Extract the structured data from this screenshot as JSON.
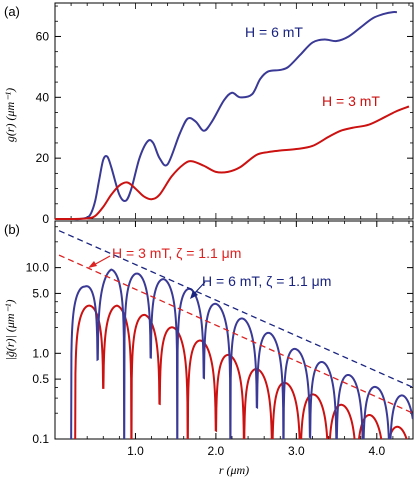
{
  "colors": {
    "blue": "#3a3a96",
    "red": "#cc1111",
    "dark_blue": "#1a2480",
    "bright_red": "#dd2222"
  },
  "chart_data": [
    {
      "type": "line",
      "panel_label": "(a)",
      "ylabel": "g(r)  (μm⁻¹)",
      "xlim": [
        0,
        4.45
      ],
      "ylim": [
        0,
        71
      ],
      "y_ticks": [
        0,
        20,
        40,
        60
      ],
      "y_tick_labels": [
        "0",
        "20",
        "40",
        "60"
      ],
      "series": [
        {
          "name": "H = 6 mT",
          "color": "#3a3a96",
          "x": [
            0,
            0.1,
            0.2,
            0.3,
            0.4,
            0.45,
            0.5,
            0.55,
            0.6,
            0.65,
            0.7,
            0.8,
            0.88,
            0.95,
            1.05,
            1.15,
            1.22,
            1.3,
            1.4,
            1.55,
            1.65,
            1.75,
            1.85,
            1.95,
            2.1,
            2.2,
            2.3,
            2.45,
            2.55,
            2.65,
            2.8,
            2.9,
            3.05,
            3.2,
            3.35,
            3.5,
            3.65,
            3.8,
            3.95,
            4.1,
            4.2,
            4.25
          ],
          "y": [
            0,
            0,
            0,
            0,
            0.5,
            2,
            6,
            13,
            19.5,
            20.5,
            17,
            8,
            6,
            10,
            20,
            25.5,
            25,
            20,
            18,
            28,
            33,
            32,
            29,
            32,
            39,
            41.5,
            40,
            41,
            46,
            48.5,
            49,
            50,
            54,
            58,
            59,
            58.5,
            60,
            63,
            66,
            67.5,
            68,
            68
          ]
        },
        {
          "name": "H = 3 mT",
          "color": "#cc1111",
          "x": [
            0,
            0.2,
            0.4,
            0.5,
            0.6,
            0.7,
            0.8,
            0.9,
            1.0,
            1.1,
            1.2,
            1.3,
            1.45,
            1.6,
            1.7,
            1.85,
            2.0,
            2.15,
            2.3,
            2.5,
            2.65,
            2.8,
            3.0,
            3.2,
            3.4,
            3.55,
            3.7,
            3.9,
            4.1,
            4.25,
            4.4
          ],
          "y": [
            0,
            0,
            0.2,
            1,
            4,
            8,
            11,
            12,
            10,
            7.5,
            6.5,
            8,
            14,
            18,
            19,
            17.5,
            15.5,
            15.5,
            17,
            21,
            22,
            22.5,
            23,
            24,
            27,
            29,
            30,
            31,
            33.5,
            35.5,
            37
          ]
        }
      ],
      "annotations": [
        {
          "text": "H = 6 mT",
          "color": "#1a2480"
        },
        {
          "text": "H = 3 mT",
          "color": "#cc1111"
        }
      ]
    },
    {
      "type": "line",
      "panel_label": "(b)",
      "xlabel": "r (μm)",
      "ylabel": "|g̃(r)|  (μm⁻¹)",
      "yscale": "log",
      "xlim": [
        0,
        4.45
      ],
      "ylim": [
        0.1,
        35
      ],
      "x_ticks": [
        1.0,
        2.0,
        3.0,
        4.0
      ],
      "x_tick_labels": [
        "1.0",
        "2.0",
        "3.0",
        "4.0"
      ],
      "y_ticks": [
        0.1,
        0.5,
        1.0,
        5.0,
        10.0
      ],
      "y_tick_labels": [
        "0.1",
        "0.5",
        "1.0",
        "5.0",
        "10.0"
      ],
      "oscillation": {
        "blue": {
          "period": 0.33,
          "first_zero": 0.2,
          "peak_x": [
            0.37,
            0.7,
            1.03,
            1.36,
            1.69,
            2.02,
            2.35,
            2.68,
            3.01,
            3.34,
            3.67,
            4.0,
            4.33
          ],
          "peak_y": [
            6.0,
            9.5,
            8.5,
            7.3,
            5.6,
            3.7,
            2.5,
            1.7,
            1.1,
            0.78,
            0.55,
            0.4,
            0.32
          ]
        },
        "red": {
          "period": 0.35,
          "first_zero": 0.25,
          "peak_x": [
            0.42,
            0.77,
            1.12,
            1.47,
            1.82,
            2.17,
            2.52,
            2.87,
            3.22,
            3.57,
            3.92
          ],
          "peak_y": [
            3.6,
            3.6,
            2.8,
            2.0,
            1.4,
            0.95,
            0.65,
            0.45,
            0.33,
            0.25,
            0.19
          ]
        }
      },
      "envelopes": [
        {
          "name": "H = 6 mT, ζ = 1.1 μm",
          "color": "#1a2480",
          "x": [
            0.05,
            4.45
          ],
          "y": [
            27,
            0.4
          ]
        },
        {
          "name": "H = 3 mT, ζ = 1.1 μm",
          "color": "#dd2222",
          "x": [
            0.05,
            4.45
          ],
          "y": [
            14,
            0.2
          ]
        }
      ],
      "annotations": [
        {
          "text": "H = 3 mT, ζ = 1.1 μm",
          "color": "#dd2222"
        },
        {
          "text": "H = 6 mT, ζ = 1.1 μm",
          "color": "#1a2480"
        }
      ]
    }
  ]
}
